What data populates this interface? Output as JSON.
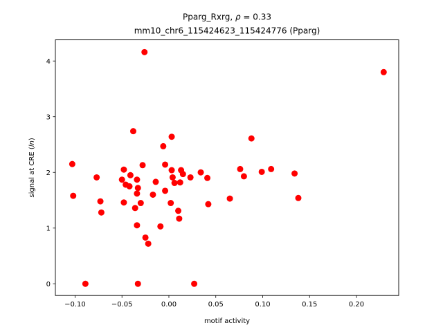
{
  "chart_data": {
    "type": "scatter",
    "title_line1_prefix": "Pparg_Rxrg, ",
    "title_line1_rho": "ρ",
    "title_line1_suffix": " = 0.33",
    "title_line2": "mm10_chr6_115424623_115424776 (Pparg)",
    "xlabel": "motif activity",
    "ylabel_prefix": "signal at CRE (",
    "ylabel_italic": "ln",
    "ylabel_suffix": ")",
    "xlim": [
      -0.121,
      0.245
    ],
    "ylim": [
      -0.21,
      4.38
    ],
    "xticks": [
      {
        "value": -0.1,
        "label": "−0.10"
      },
      {
        "value": -0.05,
        "label": "−0.05"
      },
      {
        "value": 0.0,
        "label": "0.00"
      },
      {
        "value": 0.05,
        "label": "0.05"
      },
      {
        "value": 0.1,
        "label": "0.10"
      },
      {
        "value": 0.15,
        "label": "0.15"
      },
      {
        "value": 0.2,
        "label": "0.20"
      }
    ],
    "yticks": [
      {
        "value": 0,
        "label": "0"
      },
      {
        "value": 1,
        "label": "1"
      },
      {
        "value": 2,
        "label": "2"
      },
      {
        "value": 3,
        "label": "3"
      },
      {
        "value": 4,
        "label": "4"
      }
    ],
    "marker_color": "#ff0000",
    "grid": false,
    "legend": false,
    "points": [
      {
        "x": -0.103,
        "y": 2.15
      },
      {
        "x": -0.102,
        "y": 1.58
      },
      {
        "x": -0.089,
        "y": 0.0
      },
      {
        "x": -0.077,
        "y": 1.91
      },
      {
        "x": -0.073,
        "y": 1.48
      },
      {
        "x": -0.072,
        "y": 1.28
      },
      {
        "x": -0.05,
        "y": 1.87
      },
      {
        "x": -0.048,
        "y": 2.05
      },
      {
        "x": -0.048,
        "y": 1.46
      },
      {
        "x": -0.046,
        "y": 1.78
      },
      {
        "x": -0.042,
        "y": 1.75
      },
      {
        "x": -0.041,
        "y": 1.95
      },
      {
        "x": -0.038,
        "y": 2.74
      },
      {
        "x": -0.036,
        "y": 1.36
      },
      {
        "x": -0.034,
        "y": 1.87
      },
      {
        "x": -0.034,
        "y": 1.62
      },
      {
        "x": -0.033,
        "y": 1.72
      },
      {
        "x": -0.034,
        "y": 1.05
      },
      {
        "x": -0.033,
        "y": 0.0
      },
      {
        "x": -0.03,
        "y": 1.45
      },
      {
        "x": -0.028,
        "y": 2.13
      },
      {
        "x": -0.026,
        "y": 4.16
      },
      {
        "x": -0.025,
        "y": 0.83
      },
      {
        "x": -0.022,
        "y": 0.72
      },
      {
        "x": -0.017,
        "y": 1.6
      },
      {
        "x": -0.014,
        "y": 1.83
      },
      {
        "x": -0.009,
        "y": 1.03
      },
      {
        "x": -0.006,
        "y": 2.47
      },
      {
        "x": -0.004,
        "y": 2.14
      },
      {
        "x": -0.004,
        "y": 1.67
      },
      {
        "x": 0.002,
        "y": 1.45
      },
      {
        "x": 0.003,
        "y": 2.64
      },
      {
        "x": 0.003,
        "y": 2.04
      },
      {
        "x": 0.004,
        "y": 1.91
      },
      {
        "x": 0.006,
        "y": 1.81
      },
      {
        "x": 0.01,
        "y": 1.31
      },
      {
        "x": 0.011,
        "y": 1.17
      },
      {
        "x": 0.012,
        "y": 1.82
      },
      {
        "x": 0.013,
        "y": 2.04
      },
      {
        "x": 0.015,
        "y": 1.97
      },
      {
        "x": 0.023,
        "y": 1.91
      },
      {
        "x": 0.027,
        "y": 0.0
      },
      {
        "x": 0.034,
        "y": 2.0
      },
      {
        "x": 0.041,
        "y": 1.9
      },
      {
        "x": 0.042,
        "y": 1.43
      },
      {
        "x": 0.065,
        "y": 1.53
      },
      {
        "x": 0.076,
        "y": 2.06
      },
      {
        "x": 0.08,
        "y": 1.93
      },
      {
        "x": 0.088,
        "y": 2.61
      },
      {
        "x": 0.099,
        "y": 2.01
      },
      {
        "x": 0.109,
        "y": 2.06
      },
      {
        "x": 0.134,
        "y": 1.98
      },
      {
        "x": 0.138,
        "y": 1.54
      },
      {
        "x": 0.229,
        "y": 3.8
      }
    ]
  }
}
